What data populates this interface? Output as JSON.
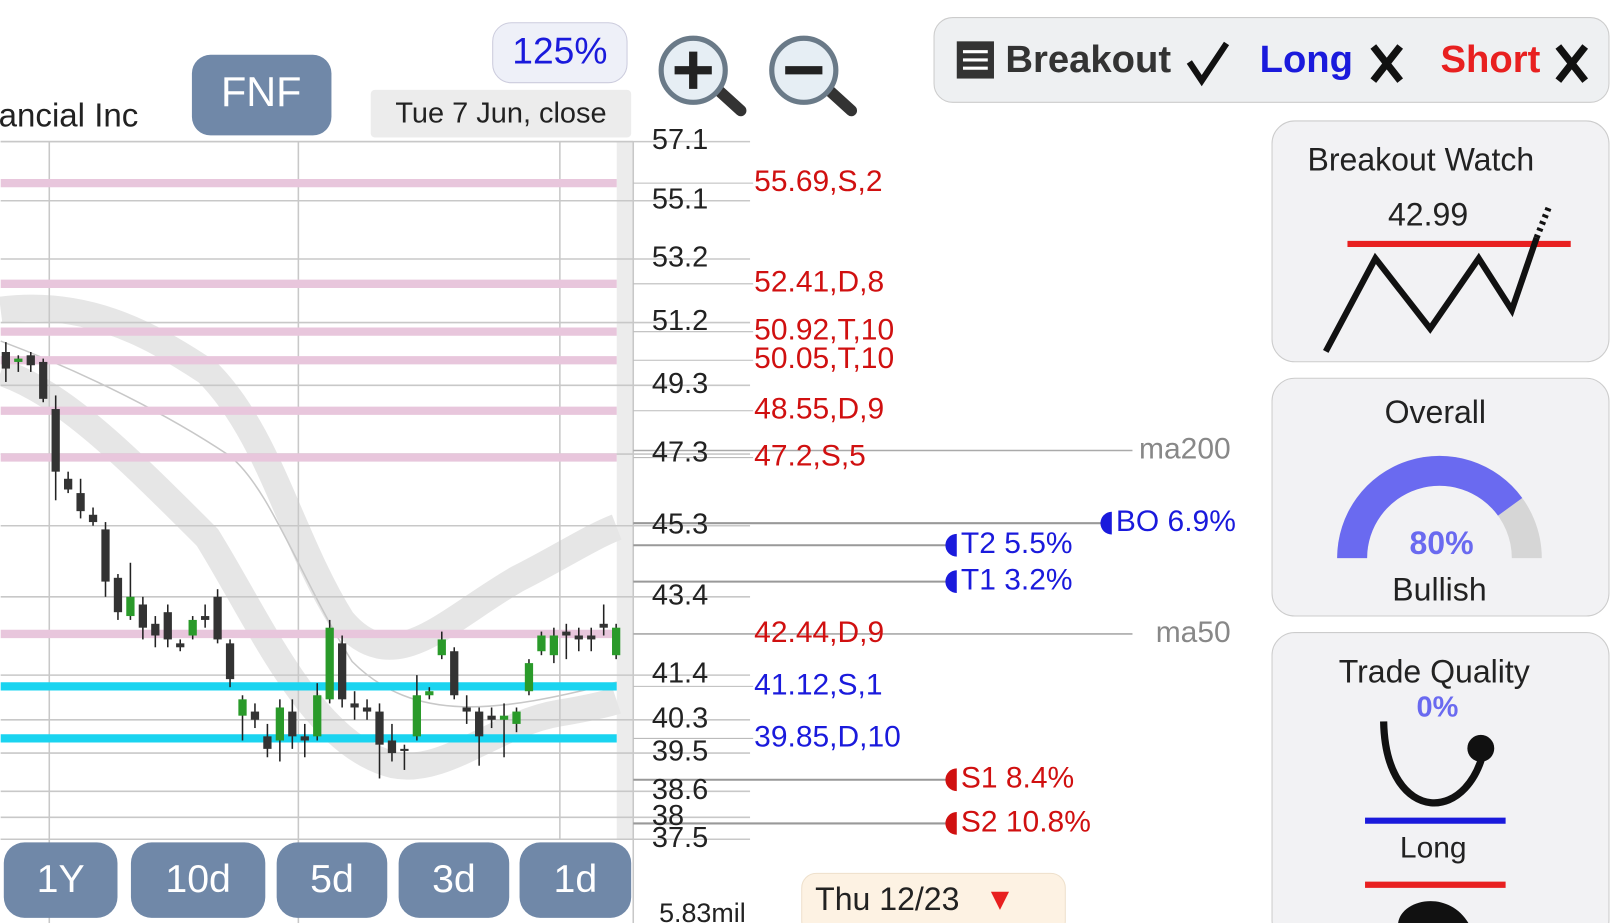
{
  "header": {
    "company": "ancial Inc",
    "symbol": "FNF",
    "zoom": "125%",
    "date_label": "Tue 7 Jun, close"
  },
  "status_bar": {
    "breakout": "Breakout",
    "long": "Long",
    "short": "Short"
  },
  "periods": [
    "1Y",
    "10d",
    "5d",
    "3d",
    "1d"
  ],
  "volume_label": "5.83mil",
  "event": {
    "label": "Thu 12/23",
    "marker": "▼"
  },
  "panels": {
    "breakout_watch": {
      "title": "Breakout Watch",
      "price": "42.99"
    },
    "overall": {
      "title": "Overall",
      "value": 80,
      "value_label": "80%",
      "verdict": "Bullish"
    },
    "trade_quality": {
      "title": "Trade Quality",
      "value_label": "0%",
      "direction": "Long"
    }
  },
  "chart_data": {
    "type": "candlestick",
    "log_scale": true,
    "grid": true,
    "ylim": [
      37.5,
      57.1
    ],
    "yticks": [
      57.1,
      55.1,
      53.2,
      51.2,
      49.3,
      47.3,
      45.3,
      43.4,
      41.4,
      40.3,
      39.5,
      38.6,
      38,
      37.5
    ],
    "up_color": "#2a9a2a",
    "down_color": "#333333",
    "open": [
      50.3,
      50.0,
      50.2,
      50.0,
      48.6,
      46.6,
      46.2,
      45.6,
      45.2,
      43.9,
      42.9,
      43.2,
      42.7,
      43.0,
      42.2,
      42.4,
      42.9,
      43.4,
      42.2,
      40.4,
      40.5,
      39.9,
      39.8,
      40.5,
      39.9,
      39.9,
      40.8,
      42.2,
      40.7,
      40.6,
      40.5,
      39.8,
      39.6,
      39.9,
      40.9,
      41.9,
      42.0,
      40.6,
      40.5,
      40.4,
      40.3,
      40.2,
      41.0,
      42.0,
      41.9,
      42.5,
      42.4,
      42.4,
      42.7,
      41.9
    ],
    "high": [
      50.6,
      50.2,
      50.3,
      50.1,
      49.0,
      46.8,
      46.6,
      45.8,
      45.4,
      44.0,
      44.3,
      43.4,
      42.9,
      43.2,
      42.3,
      42.9,
      43.2,
      43.6,
      42.3,
      40.9,
      40.7,
      40.2,
      40.8,
      40.8,
      40.2,
      41.2,
      42.8,
      42.4,
      41.0,
      40.8,
      40.7,
      40.2,
      39.7,
      41.4,
      41.1,
      42.5,
      42.1,
      40.9,
      40.6,
      40.6,
      40.7,
      40.6,
      41.8,
      42.5,
      42.6,
      42.7,
      42.6,
      42.6,
      43.2,
      42.7
    ],
    "low": [
      49.4,
      49.7,
      49.7,
      48.8,
      46.0,
      46.2,
      45.5,
      45.3,
      43.4,
      42.8,
      42.8,
      42.3,
      42.1,
      42.1,
      42.0,
      42.3,
      42.6,
      42.2,
      41.1,
      39.8,
      40.1,
      39.4,
      39.3,
      39.6,
      39.4,
      39.8,
      40.7,
      40.6,
      40.3,
      40.3,
      38.9,
      39.3,
      39.1,
      39.8,
      40.8,
      41.8,
      40.8,
      40.2,
      39.2,
      40.1,
      39.4,
      40.0,
      40.9,
      41.9,
      41.7,
      41.8,
      42.0,
      42.0,
      42.4,
      41.8
    ],
    "close": [
      49.8,
      50.1,
      49.9,
      48.9,
      46.8,
      46.3,
      45.7,
      45.4,
      43.8,
      43.0,
      43.4,
      42.6,
      42.4,
      42.3,
      42.1,
      42.8,
      42.8,
      42.3,
      41.3,
      40.8,
      40.3,
      39.6,
      40.6,
      39.9,
      39.8,
      40.9,
      42.6,
      40.8,
      40.6,
      40.5,
      39.7,
      39.5,
      39.6,
      40.9,
      41.0,
      42.3,
      40.9,
      40.5,
      39.9,
      40.3,
      40.4,
      40.5,
      41.7,
      42.4,
      42.4,
      42.4,
      42.3,
      42.3,
      42.6,
      42.6
    ],
    "levels": [
      {
        "value": 55.69,
        "label": "55.69,S,2",
        "color": "#e8c6dc",
        "text_color": "#d01010"
      },
      {
        "value": 52.41,
        "label": "52.41,D,8",
        "color": "#e8c6dc",
        "text_color": "#d01010"
      },
      {
        "value": 50.92,
        "label": "50.92,T,10",
        "color": "#e8c6dc",
        "text_color": "#d01010"
      },
      {
        "value": 50.05,
        "label": "50.05,T,10",
        "color": "#e8c6dc",
        "text_color": "#d01010"
      },
      {
        "value": 48.55,
        "label": "48.55,D,9",
        "color": "#e8c6dc",
        "text_color": "#d01010"
      },
      {
        "value": 47.2,
        "label": "47.2,S,5",
        "color": "#e8c6dc",
        "text_color": "#d01010"
      },
      {
        "value": 42.44,
        "label": "42.44,D,9",
        "color": "#e8c6dc",
        "text_color": "#d01010"
      },
      {
        "value": 41.12,
        "label": "41.12,S,1",
        "color": "#1ad4f0",
        "text_color": "#1a1adc"
      },
      {
        "value": 39.85,
        "label": "39.85,D,10",
        "color": "#1ad4f0",
        "text_color": "#1a1adc"
      }
    ],
    "targets": [
      {
        "text": "BO 6.9%",
        "price": 45.37,
        "color": "#1a1adc"
      },
      {
        "text": "T2 5.5%",
        "price": 44.77,
        "color": "#1a1adc"
      },
      {
        "text": "T1 3.2%",
        "price": 43.8,
        "color": "#1a1adc"
      },
      {
        "text": "S1 8.4%",
        "price": 38.87,
        "color": "#d01010"
      },
      {
        "text": "S2 10.8%",
        "price": 37.86,
        "color": "#d01010"
      }
    ],
    "moving_averages": [
      {
        "name": "ma200",
        "value": 47.4
      },
      {
        "name": "ma50",
        "value": 42.44
      }
    ]
  }
}
